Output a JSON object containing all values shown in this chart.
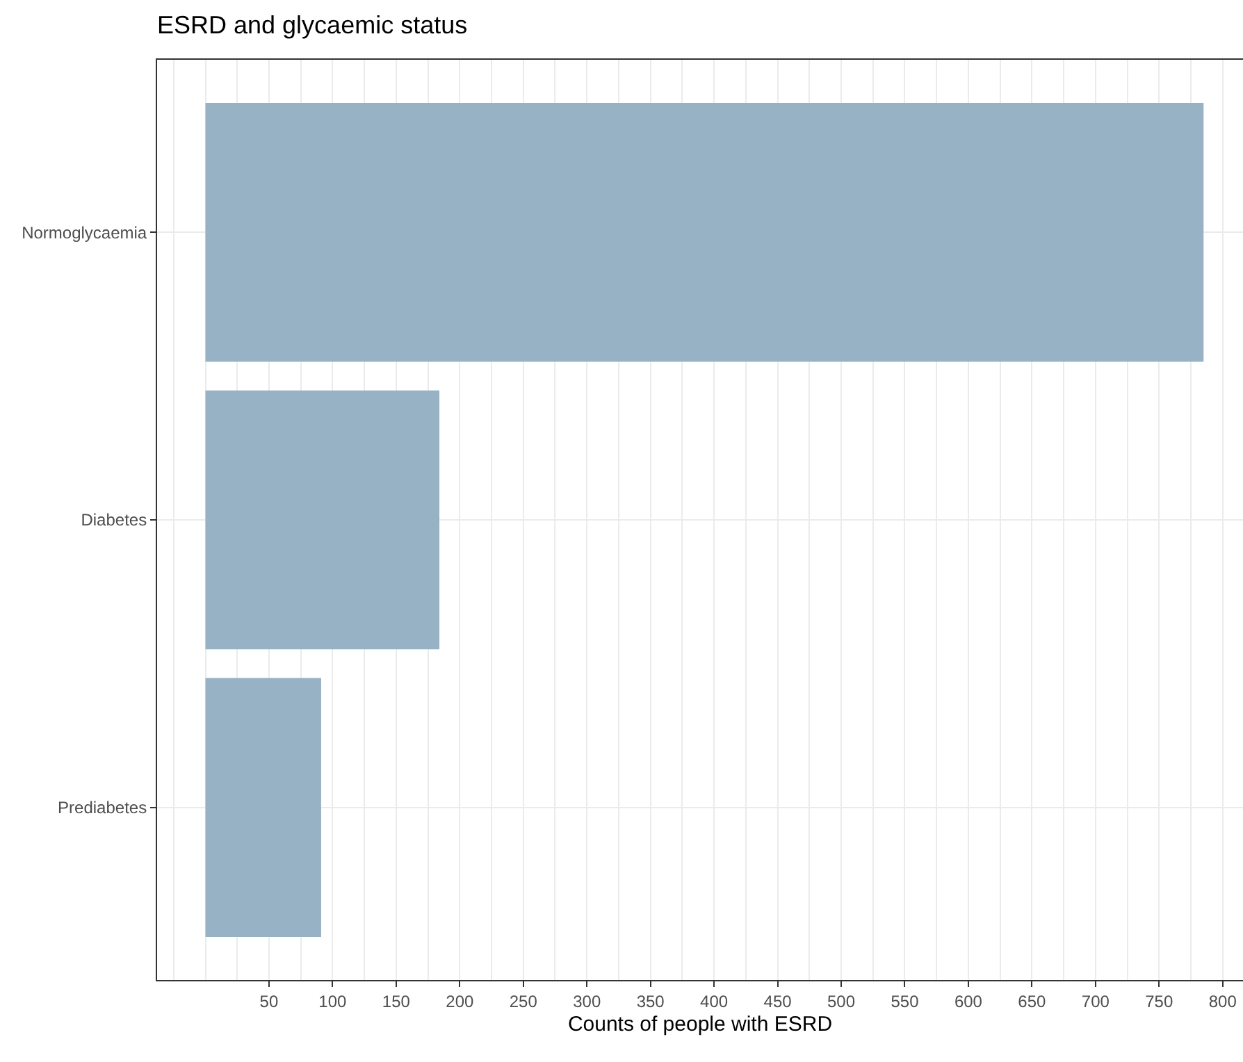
{
  "chart_data": {
    "type": "bar",
    "orientation": "horizontal",
    "title": "ESRD and glycaemic status",
    "xlabel": "Counts of people with ESRD",
    "categories": [
      "Normoglycaemia",
      "Diabetes",
      "Prediabetes"
    ],
    "values": [
      785,
      184,
      91
    ],
    "color": "#97b2c4",
    "xlim": [
      -38,
      816
    ],
    "xticks": [
      50,
      100,
      150,
      200,
      250,
      300,
      350,
      400,
      450,
      500,
      550,
      600,
      650,
      700,
      750,
      800
    ],
    "grid": true,
    "legend": false
  }
}
